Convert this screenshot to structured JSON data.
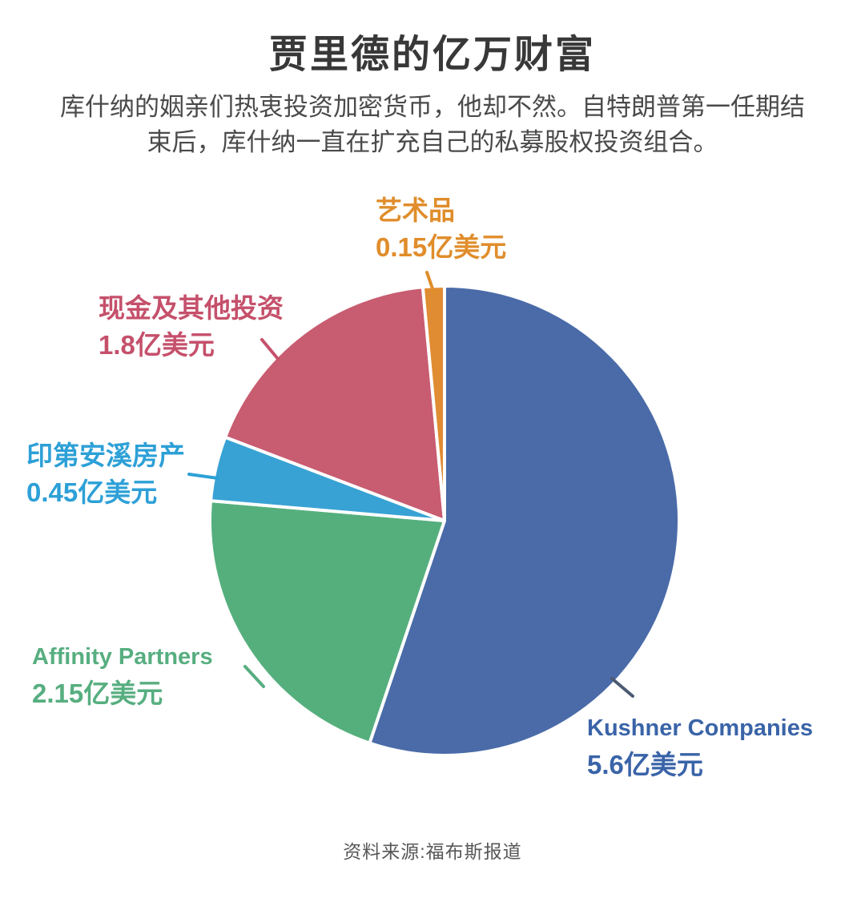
{
  "page": {
    "title": "贾里德的亿万财富",
    "subtitle_line1": "库什纳的姻亲们热衷投资加密货币，他却不然。自特朗普第一任期结",
    "subtitle_line2": "束后，库什纳一直在扩充自己的私募股权投资组合。",
    "source": "资料来源:福布斯报道"
  },
  "chart_data": {
    "type": "pie",
    "title": "贾里德的亿万财富",
    "unit": "亿美元",
    "total_value": 10.15,
    "direction": "clockwise",
    "start_angle_deg": 0,
    "legend_position": "outside-callout-labels",
    "background": "#ffffff",
    "slice_gap_color": "#ffffff",
    "slices": [
      {
        "name": "Kushner Companies",
        "value": 5.6,
        "value_label": "5.6亿美元",
        "color": "#4A6BA8",
        "text_color": "#3A64A8",
        "leader_color": "#4D5A73"
      },
      {
        "name": "Affinity Partners",
        "value": 2.15,
        "value_label": "2.15亿美元",
        "color": "#55AF7D",
        "text_color": "#57AE80",
        "leader_color": "#57AE80"
      },
      {
        "name": "印第安溪房产",
        "value": 0.45,
        "value_label": "0.45亿美元",
        "color": "#38A2D4",
        "text_color": "#2DA0D7",
        "leader_color": "#2DA0D7"
      },
      {
        "name": "现金及其他投资",
        "value": 1.8,
        "value_label": "1.8亿美元",
        "color": "#C85C70",
        "text_color": "#C5506B",
        "leader_color": "#C5506B"
      },
      {
        "name": "艺术品",
        "value": 0.15,
        "value_label": "0.15亿美元",
        "color": "#E08C32",
        "text_color": "#E08D2B",
        "leader_color": "#E08D2B"
      }
    ]
  }
}
